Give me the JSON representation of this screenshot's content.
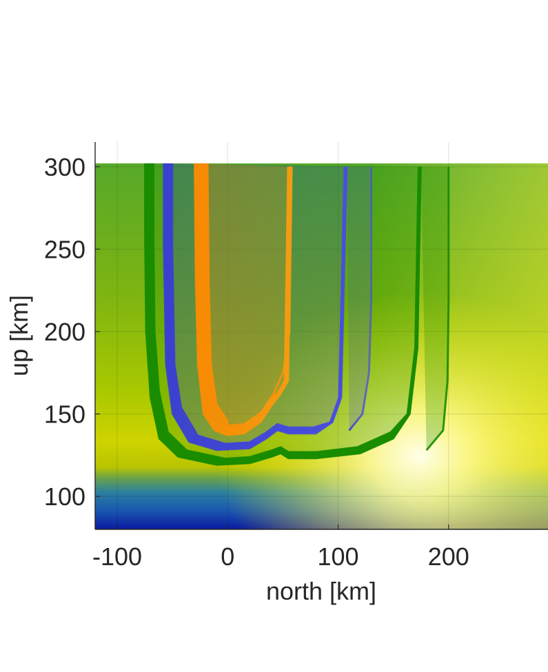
{
  "chart_data": {
    "type": "line",
    "title": "",
    "xlabel": "north [km]",
    "ylabel": "up [km]",
    "xlim": [
      -120,
      290
    ],
    "ylim": [
      80,
      315
    ],
    "x_ticks": [
      -100,
      0,
      100,
      200
    ],
    "x_tick_labels": [
      "-100",
      "0",
      "100",
      "200"
    ],
    "y_ticks": [
      100,
      150,
      200,
      250,
      300
    ],
    "y_tick_labels": [
      "100",
      "150",
      "200",
      "250",
      "300"
    ],
    "grid": true,
    "background": "colormap field (blue at bottom, green aloft, yellow/white near 110-120 km)",
    "series": [
      {
        "color": "#1a8c00",
        "edge_color": "#0a7a00",
        "x_left_outer": [
          -75,
          -75,
          -74,
          -70,
          -62,
          -45,
          -10,
          20,
          40,
          48,
          55,
          80,
          120,
          150,
          165,
          172,
          175
        ],
        "y_left_outer": [
          302,
          260,
          200,
          160,
          135,
          124,
          119,
          120,
          124,
          126,
          123,
          123,
          126,
          135,
          150,
          190,
          300
        ],
        "x_right_outer": [
          200,
          200,
          199,
          195,
          180
        ],
        "y_right_outer": [
          300,
          220,
          170,
          140,
          128
        ],
        "band_width": 8
      },
      {
        "color": "#3a3fd0",
        "x_left_outer": [
          -58,
          -58,
          -56,
          -50,
          -35,
          -10,
          20,
          35,
          45,
          55,
          80,
          95,
          103,
          108
        ],
        "y_left_outer": [
          302,
          250,
          180,
          150,
          133,
          128,
          129,
          135,
          140,
          138,
          138,
          145,
          160,
          300
        ],
        "x_right_outer": [
          130,
          130,
          128,
          122,
          110
        ],
        "y_right_outer": [
          300,
          220,
          175,
          150,
          140
        ],
        "band_width": 8
      },
      {
        "color": "#ff8c00",
        "x_left_outer": [
          -30,
          -29,
          -27,
          -22,
          -12,
          0,
          15,
          30,
          40,
          48,
          55,
          58
        ],
        "y_left_outer": [
          302,
          230,
          180,
          150,
          140,
          137,
          138,
          145,
          155,
          162,
          170,
          300
        ],
        "x_right_outer": [
          58,
          56,
          50,
          40
        ],
        "y_right_outer": [
          300,
          200,
          175,
          160
        ],
        "band_width": 12
      }
    ]
  }
}
